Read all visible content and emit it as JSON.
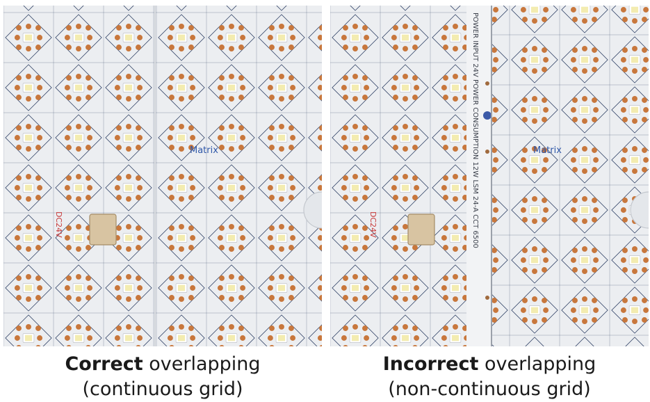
{
  "panels": [
    {
      "id": "left",
      "board_label": "Matrix",
      "strip_label": "DC24V",
      "caption_bold": "Correct",
      "caption_rest": " overlapping",
      "caption_sub": "(continuous grid)",
      "continuous": true
    },
    {
      "id": "right",
      "board_label": "Matrix",
      "strip_label": "DC24V",
      "edge_text": "POWER INPUT 24V   POWER CONSUMPTION 12W   LSM 24-A   CCT 6500",
      "caption_bold": "Incorrect",
      "caption_rest": " overlapping",
      "caption_sub": "(non-continuous grid)",
      "continuous": false
    }
  ],
  "colors": {
    "board": "#eceef1",
    "board_shadow": "#d6d9de",
    "pad": "#c8773c",
    "grid_line": "#2c3e63",
    "led": "#f3ecb0",
    "label_blue": "#2f57a8",
    "label_red": "#c83a3a"
  }
}
